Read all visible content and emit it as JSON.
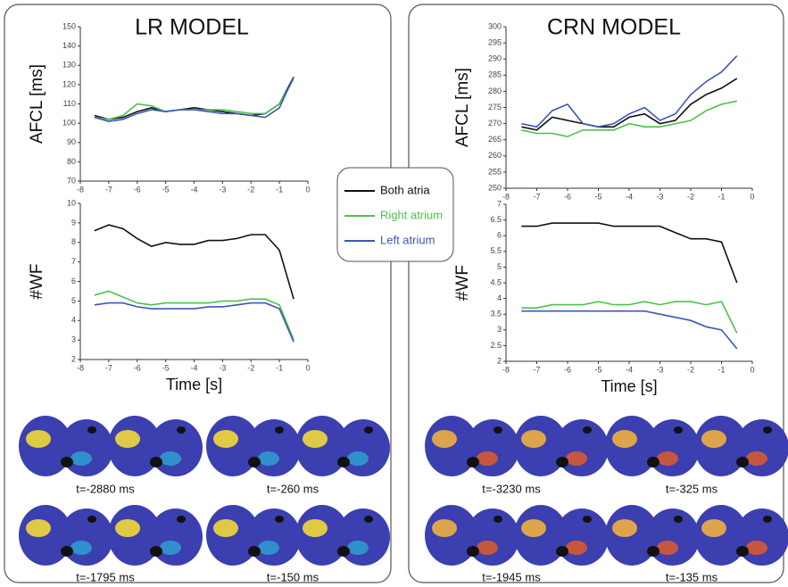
{
  "chart_data": [
    {
      "type": "line",
      "title": "LR MODEL",
      "ylabel": "AFCL [ms]",
      "x": [
        -7.5,
        -7,
        -6.5,
        -6,
        -5.5,
        -5,
        -4.5,
        -4,
        -3.5,
        -3,
        -2.5,
        -2,
        -1.5,
        -1,
        -0.5
      ],
      "xlim": [
        -8,
        0
      ],
      "xticks": [
        -8,
        -7,
        -6,
        -5,
        -4,
        -3,
        -2,
        -1,
        0
      ],
      "ylim": [
        70,
        150
      ],
      "yticks": [
        70,
        80,
        90,
        100,
        110,
        120,
        130,
        140,
        150
      ],
      "series": [
        {
          "name": "Both atria",
          "color": "#111111",
          "values": [
            104,
            102,
            103,
            106,
            108,
            106,
            107,
            108,
            107,
            106,
            105,
            104,
            105,
            110,
            124
          ]
        },
        {
          "name": "Right atrium",
          "color": "#4cc14c",
          "values": [
            103,
            102,
            104,
            110,
            109,
            106,
            107,
            107,
            107,
            107,
            106,
            105,
            105,
            110,
            123
          ]
        },
        {
          "name": "Left atrium",
          "color": "#3d55b9",
          "values": [
            103,
            101,
            102,
            105,
            107,
            106,
            107,
            107,
            106,
            105,
            105,
            104,
            103,
            108,
            124
          ]
        }
      ]
    },
    {
      "type": "line",
      "ylabel": "#WF",
      "xlabel": "Time [s]",
      "x": [
        -7.5,
        -7,
        -6.5,
        -6,
        -5.5,
        -5,
        -4.5,
        -4,
        -3.5,
        -3,
        -2.5,
        -2,
        -1.5,
        -1,
        -0.5
      ],
      "xlim": [
        -8,
        0
      ],
      "xticks": [
        -8,
        -7,
        -6,
        -5,
        -4,
        -3,
        -2,
        -1,
        0
      ],
      "ylim": [
        2,
        10
      ],
      "yticks": [
        2,
        3,
        4,
        5,
        6,
        7,
        8,
        9,
        10
      ],
      "series": [
        {
          "color": "#111111",
          "values": [
            8.6,
            8.9,
            8.7,
            8.2,
            7.8,
            8.0,
            7.9,
            7.9,
            8.1,
            8.1,
            8.2,
            8.4,
            8.4,
            7.6,
            5.1
          ]
        },
        {
          "color": "#4cc14c",
          "values": [
            5.3,
            5.5,
            5.2,
            4.9,
            4.8,
            4.9,
            4.9,
            4.9,
            4.9,
            5.0,
            5.0,
            5.1,
            5.1,
            4.8,
            3.0
          ]
        },
        {
          "color": "#3d55b9",
          "values": [
            4.8,
            4.9,
            4.9,
            4.7,
            4.6,
            4.6,
            4.6,
            4.6,
            4.7,
            4.7,
            4.8,
            4.9,
            4.9,
            4.6,
            2.9
          ]
        }
      ]
    },
    {
      "type": "line",
      "title": "CRN MODEL",
      "ylabel": "AFCL [ms]",
      "x": [
        -7.5,
        -7,
        -6.5,
        -6,
        -5.5,
        -5,
        -4.5,
        -4,
        -3.5,
        -3,
        -2.5,
        -2,
        -1.5,
        -1,
        -0.5
      ],
      "xlim": [
        -8,
        0
      ],
      "xticks": [
        -8,
        -7,
        -6,
        -5,
        -4,
        -3,
        -2,
        -1,
        0
      ],
      "ylim": [
        250,
        300
      ],
      "yticks": [
        250,
        255,
        260,
        265,
        270,
        275,
        280,
        285,
        290,
        295,
        300
      ],
      "series": [
        {
          "color": "#111111",
          "values": [
            269,
            268,
            272,
            271,
            270,
            269,
            269,
            272,
            273,
            270,
            271,
            276,
            279,
            281,
            284
          ]
        },
        {
          "color": "#4cc14c",
          "values": [
            268,
            267,
            267,
            266,
            268,
            268,
            268,
            270,
            269,
            269,
            270,
            271,
            274,
            276,
            277
          ]
        },
        {
          "color": "#3d55b9",
          "values": [
            270,
            269,
            274,
            276,
            270,
            269,
            270,
            273,
            275,
            271,
            273,
            279,
            283,
            286,
            291
          ]
        }
      ]
    },
    {
      "type": "line",
      "ylabel": "#WF",
      "xlabel": "Time [s]",
      "x": [
        -7.5,
        -7,
        -6.5,
        -6,
        -5.5,
        -5,
        -4.5,
        -4,
        -3.5,
        -3,
        -2.5,
        -2,
        -1.5,
        -1,
        -0.5
      ],
      "xlim": [
        -8,
        0
      ],
      "xticks": [
        -8,
        -7,
        -6,
        -5,
        -4,
        -3,
        -2,
        -1,
        0
      ],
      "ylim": [
        2,
        7
      ],
      "yticks": [
        2,
        2.5,
        3,
        3.5,
        4,
        4.5,
        5,
        5.5,
        6,
        6.5,
        7
      ],
      "series": [
        {
          "color": "#111111",
          "values": [
            6.3,
            6.3,
            6.4,
            6.4,
            6.4,
            6.4,
            6.3,
            6.3,
            6.3,
            6.3,
            6.1,
            5.9,
            5.9,
            5.8,
            4.5
          ]
        },
        {
          "color": "#4cc14c",
          "values": [
            3.7,
            3.7,
            3.8,
            3.8,
            3.8,
            3.9,
            3.8,
            3.8,
            3.9,
            3.8,
            3.9,
            3.9,
            3.8,
            3.9,
            2.9
          ]
        },
        {
          "color": "#3d55b9",
          "values": [
            3.6,
            3.6,
            3.6,
            3.6,
            3.6,
            3.6,
            3.6,
            3.6,
            3.6,
            3.5,
            3.4,
            3.3,
            3.1,
            3.0,
            2.4
          ]
        }
      ]
    }
  ],
  "snapshots": {
    "left": [
      "t=-2880 ms",
      "t=-260 ms",
      "t=-1795 ms",
      "t=-150 ms"
    ],
    "right": [
      "t=-3230 ms",
      "t=-325 ms",
      "t=-1945 ms",
      "t=-135 ms"
    ]
  }
}
